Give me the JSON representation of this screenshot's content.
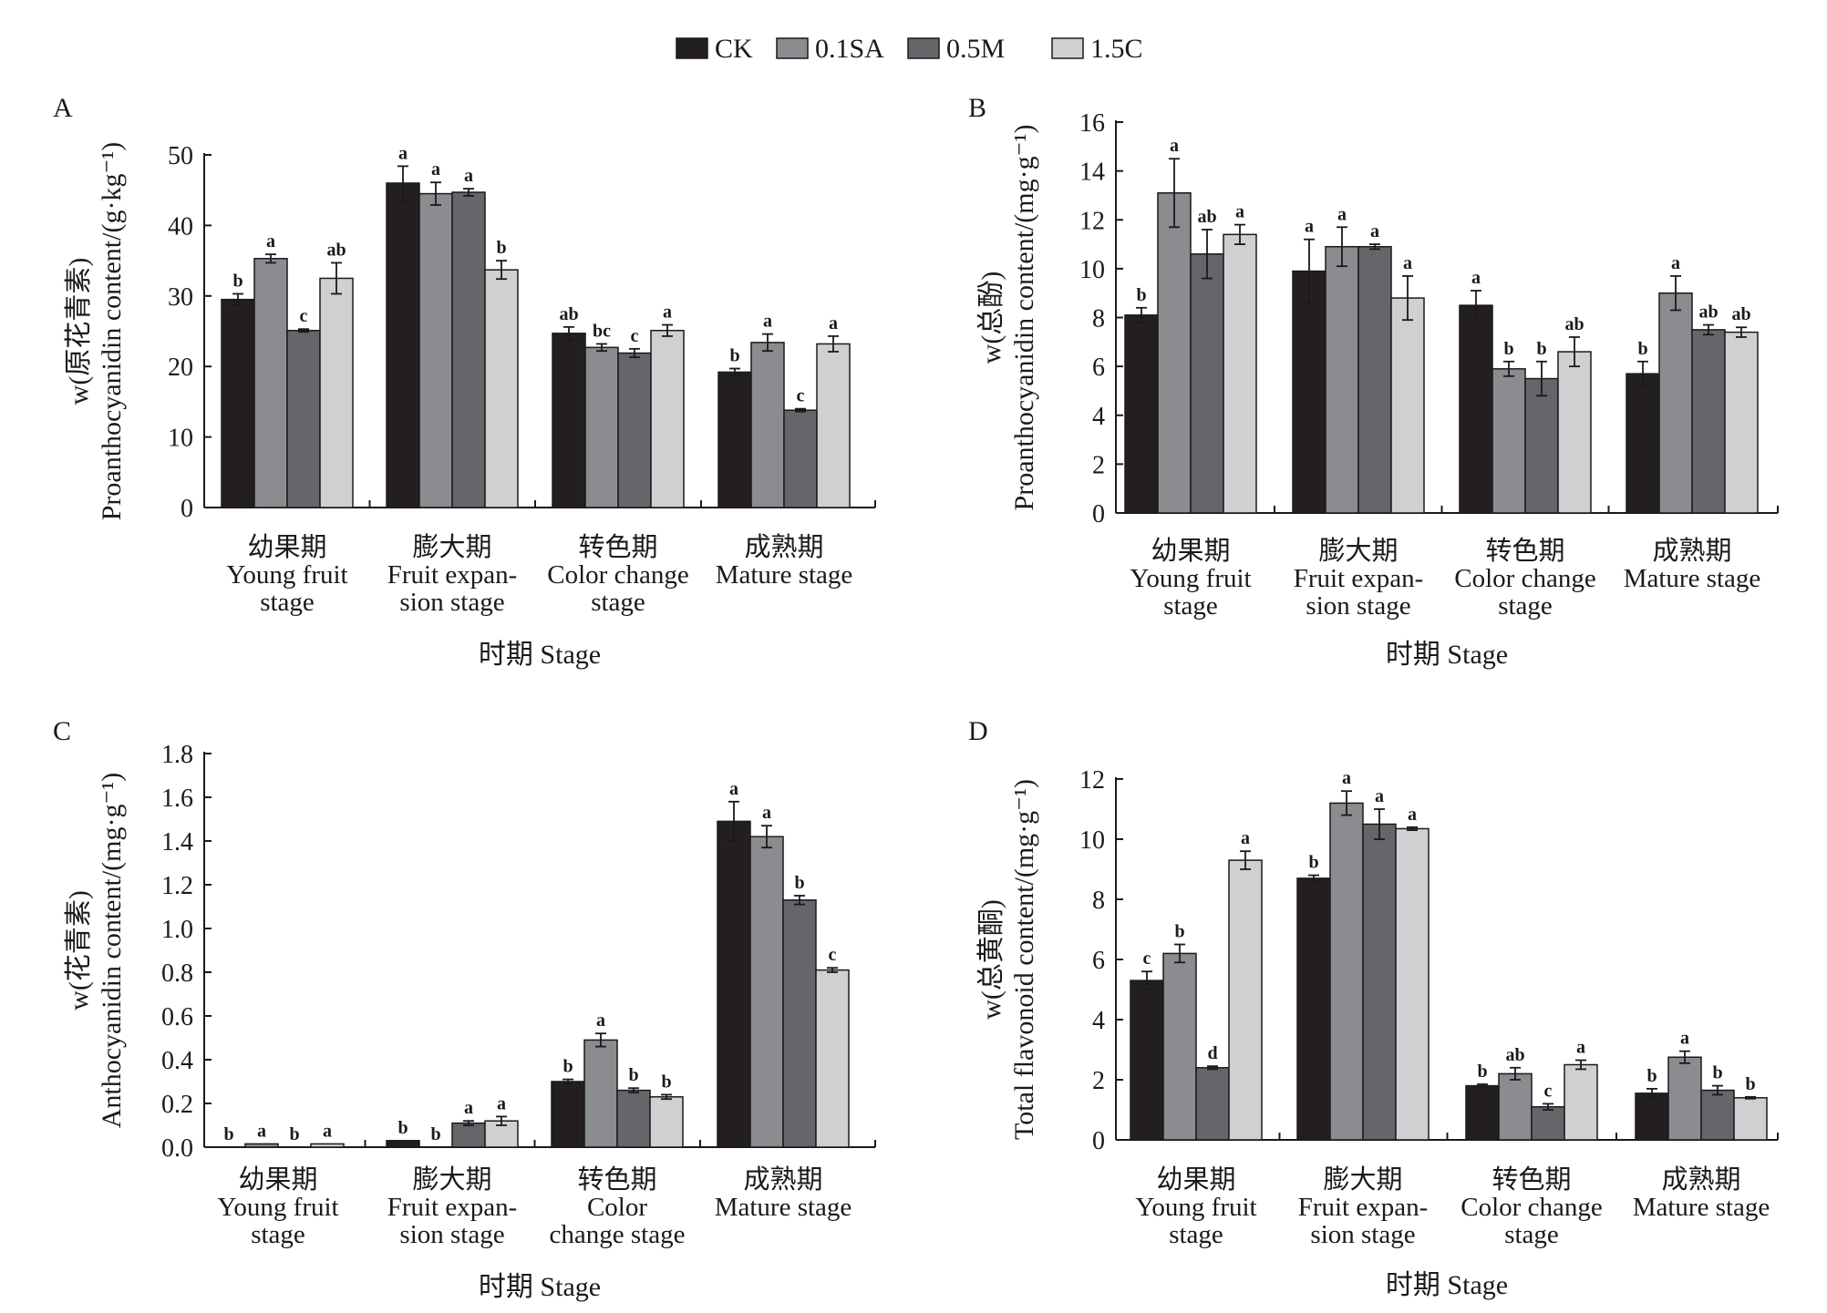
{
  "legend": {
    "items": [
      {
        "label": "CK",
        "color": "#231f20"
      },
      {
        "label": "0.1SA",
        "color": "#8a8c8f"
      },
      {
        "label": "0.5M",
        "color": "#646669"
      },
      {
        "label": "1.5C",
        "color": "#cfd0d2"
      }
    ]
  },
  "chart_data": [
    {
      "type": "bar",
      "panel": "A",
      "ylabel_1": "w(原花青素)",
      "ylabel_2": "Proanthocyanidin content/(g·kg⁻¹)",
      "xlabel": "时期 Stage",
      "ylim": [
        0,
        50
      ],
      "yticks": [
        "0",
        "10",
        "20",
        "30",
        "40",
        "50"
      ],
      "categories": [
        [
          "幼果期",
          "Young fruit",
          "stage"
        ],
        [
          "膨大期",
          "Fruit expan-",
          "sion stage"
        ],
        [
          "转色期",
          "Color change",
          "stage"
        ],
        [
          "成熟期",
          "Mature stage"
        ]
      ],
      "series": [
        {
          "name": "CK",
          "values": [
            29.5,
            46.0,
            24.7,
            19.2
          ],
          "errors": [
            0.8,
            2.4,
            0.9,
            0.5
          ],
          "letters": [
            "b",
            "a",
            "ab",
            "b"
          ]
        },
        {
          "name": "0.1SA",
          "values": [
            35.3,
            44.5,
            22.7,
            23.4
          ],
          "errors": [
            0.6,
            1.6,
            0.5,
            1.2
          ],
          "letters": [
            "a",
            "a",
            "bc",
            "a"
          ]
        },
        {
          "name": "0.5M",
          "values": [
            25.1,
            44.7,
            21.9,
            13.8
          ],
          "errors": [
            0.2,
            0.5,
            0.6,
            0.2
          ],
          "letters": [
            "c",
            "a",
            "c",
            "c"
          ]
        },
        {
          "name": "1.5C",
          "values": [
            32.5,
            33.7,
            25.1,
            23.2
          ],
          "errors": [
            2.2,
            1.3,
            0.8,
            1.1
          ],
          "letters": [
            "ab",
            "b",
            "a",
            "a"
          ]
        }
      ]
    },
    {
      "type": "bar",
      "panel": "B",
      "ylabel_1": "w(总酚)",
      "ylabel_2": "Proanthocyanidin content/(mg·g⁻¹)",
      "xlabel": "时期 Stage",
      "ylim": [
        0,
        16
      ],
      "yticks": [
        "0",
        "2",
        "4",
        "6",
        "8",
        "10",
        "12",
        "14",
        "16"
      ],
      "categories": [
        [
          "幼果期",
          "Young fruit",
          "stage"
        ],
        [
          "膨大期",
          "Fruit expan-",
          "sion stage"
        ],
        [
          "转色期",
          "Color change",
          "stage"
        ],
        [
          "成熟期",
          "Mature stage"
        ]
      ],
      "series": [
        {
          "name": "CK",
          "values": [
            8.1,
            9.9,
            8.5,
            5.7
          ],
          "errors": [
            0.3,
            1.3,
            0.6,
            0.5
          ],
          "letters": [
            "b",
            "a",
            "a",
            "b"
          ]
        },
        {
          "name": "0.1SA",
          "values": [
            13.1,
            10.9,
            5.9,
            9.0
          ],
          "errors": [
            1.4,
            0.8,
            0.3,
            0.7
          ],
          "letters": [
            "a",
            "a",
            "b",
            "a"
          ]
        },
        {
          "name": "0.5M",
          "values": [
            10.6,
            10.9,
            5.5,
            7.5
          ],
          "errors": [
            1.0,
            0.1,
            0.7,
            0.2
          ],
          "letters": [
            "ab",
            "a",
            "b",
            "ab"
          ]
        },
        {
          "name": "1.5C",
          "values": [
            11.4,
            8.8,
            6.6,
            7.4
          ],
          "errors": [
            0.4,
            0.9,
            0.6,
            0.2
          ],
          "letters": [
            "a",
            "a",
            "ab",
            "ab"
          ]
        }
      ]
    },
    {
      "type": "bar",
      "panel": "C",
      "ylabel_1": "w(花青素)",
      "ylabel_2": "Anthocyanidin content/(mg·g⁻¹)",
      "xlabel": "时期 Stage",
      "ylim": [
        0,
        1.8
      ],
      "yticks": [
        "0.0",
        "0.2",
        "0.4",
        "0.6",
        "0.8",
        "1.0",
        "1.2",
        "1.4",
        "1.6",
        "1.8"
      ],
      "categories": [
        [
          "幼果期",
          "Young fruit",
          "stage"
        ],
        [
          "膨大期",
          "Fruit expan-",
          "sion stage"
        ],
        [
          "转色期",
          "Color",
          "change stage"
        ],
        [
          "成熟期",
          "Mature stage"
        ]
      ],
      "series": [
        {
          "name": "CK",
          "values": [
            0.0,
            0.03,
            0.3,
            1.49
          ],
          "errors": [
            0,
            0,
            0.01,
            0.09
          ],
          "letters": [
            "b",
            "b",
            "b",
            "a"
          ]
        },
        {
          "name": "0.1SA",
          "values": [
            0.015,
            0.0,
            0.49,
            1.42
          ],
          "errors": [
            0,
            0,
            0.03,
            0.05
          ],
          "letters": [
            "a",
            "b",
            "a",
            "a"
          ]
        },
        {
          "name": "0.5M",
          "values": [
            0.0,
            0.11,
            0.26,
            1.13
          ],
          "errors": [
            0,
            0.01,
            0.01,
            0.02
          ],
          "letters": [
            "b",
            "a",
            "b",
            "b"
          ]
        },
        {
          "name": "1.5C",
          "values": [
            0.015,
            0.12,
            0.23,
            0.81
          ],
          "errors": [
            0,
            0.02,
            0.01,
            0.01
          ],
          "letters": [
            "a",
            "a",
            "b",
            "c"
          ]
        }
      ]
    },
    {
      "type": "bar",
      "panel": "D",
      "ylabel_1": "w(总黄酮)",
      "ylabel_2": "Total flavonoid content/(mg·g⁻¹)",
      "xlabel": "时期 Stage",
      "ylim": [
        0,
        12
      ],
      "yticks": [
        "0",
        "2",
        "4",
        "6",
        "8",
        "10",
        "12"
      ],
      "categories": [
        [
          "幼果期",
          "Young fruit",
          "stage"
        ],
        [
          "膨大期",
          "Fruit expan-",
          "sion stage"
        ],
        [
          "转色期",
          "Color change",
          "stage"
        ],
        [
          "成熟期",
          "Mature stage"
        ]
      ],
      "series": [
        {
          "name": "CK",
          "values": [
            5.3,
            8.7,
            1.8,
            1.55
          ],
          "errors": [
            0.3,
            0.1,
            0.05,
            0.15
          ],
          "letters": [
            "c",
            "b",
            "b",
            "b"
          ]
        },
        {
          "name": "0.1SA",
          "values": [
            6.2,
            11.2,
            2.2,
            2.75
          ],
          "errors": [
            0.3,
            0.4,
            0.2,
            0.2
          ],
          "letters": [
            "b",
            "a",
            "ab",
            "a"
          ]
        },
        {
          "name": "0.5M",
          "values": [
            2.4,
            10.5,
            1.1,
            1.65
          ],
          "errors": [
            0.05,
            0.5,
            0.1,
            0.15
          ],
          "letters": [
            "d",
            "a",
            "c",
            "b"
          ]
        },
        {
          "name": "1.5C",
          "values": [
            9.3,
            10.35,
            2.5,
            1.4
          ],
          "errors": [
            0.3,
            0.05,
            0.15,
            0.03
          ],
          "letters": [
            "a",
            "a",
            "a",
            "b"
          ]
        }
      ]
    }
  ]
}
